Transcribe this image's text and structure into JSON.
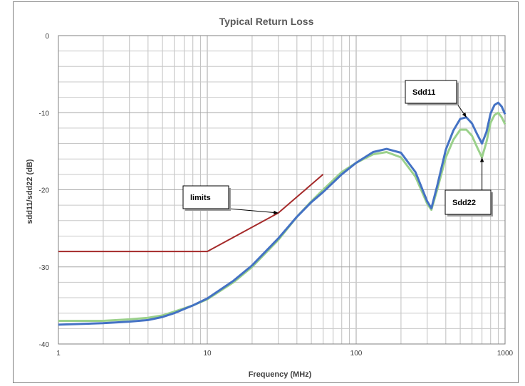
{
  "chart_data": {
    "type": "line",
    "title": "Typical Return Loss",
    "xlabel": "Frequency (MHz)",
    "ylabel": "sdd11/sdd22 (dB)",
    "xscale": "log",
    "xlim": [
      1,
      1000
    ],
    "ylim": [
      -40,
      0
    ],
    "x_ticks": [
      1,
      10,
      100,
      1000
    ],
    "x_tick_labels": [
      "1",
      "10",
      "100",
      "1000"
    ],
    "y_ticks": [
      0,
      -10,
      -20,
      -30,
      -40
    ],
    "y_tick_labels": [
      "0",
      "-10",
      "-20",
      "-30",
      "-40"
    ],
    "grid": true,
    "series": [
      {
        "name": "limits",
        "color": "#a52a2a",
        "x": [
          1,
          10,
          30,
          60
        ],
        "y": [
          -28,
          -28,
          -23,
          -18
        ]
      },
      {
        "name": "Sdd22",
        "color": "#9bd18b",
        "x": [
          1,
          2,
          3,
          4,
          5,
          6,
          8,
          10,
          15,
          20,
          30,
          40,
          50,
          60,
          80,
          100,
          130,
          160,
          200,
          250,
          300,
          320,
          350,
          400,
          450,
          500,
          550,
          600,
          650,
          700,
          750,
          800,
          850,
          900,
          950,
          1000
        ],
        "y": [
          -37,
          -37,
          -36.8,
          -36.6,
          -36.3,
          -35.8,
          -35,
          -34.2,
          -32,
          -30,
          -26.5,
          -23.5,
          -21.5,
          -20,
          -17.7,
          -16.5,
          -15.4,
          -15.1,
          -15.8,
          -18.3,
          -21.8,
          -22.6,
          -20,
          -15.8,
          -13.5,
          -12.2,
          -12.2,
          -13,
          -14.5,
          -15.8,
          -13.8,
          -11.3,
          -10.3,
          -10,
          -10.6,
          -11.5
        ]
      },
      {
        "name": "Sdd11",
        "color": "#4472c4",
        "x": [
          1,
          2,
          3,
          4,
          5,
          6,
          8,
          10,
          15,
          20,
          30,
          40,
          50,
          60,
          80,
          100,
          130,
          160,
          200,
          250,
          300,
          320,
          350,
          400,
          450,
          500,
          550,
          600,
          650,
          700,
          750,
          800,
          850,
          900,
          950,
          1000
        ],
        "y": [
          -37.5,
          -37.3,
          -37.1,
          -36.9,
          -36.5,
          -36,
          -35,
          -34.1,
          -31.8,
          -29.8,
          -26.3,
          -23.5,
          -21.6,
          -20.3,
          -18,
          -16.5,
          -15.1,
          -14.7,
          -15.2,
          -17.7,
          -21.5,
          -22.4,
          -19.5,
          -14.8,
          -12.3,
          -10.8,
          -10.6,
          -11.4,
          -12.8,
          -14,
          -12.5,
          -10.1,
          -9,
          -8.7,
          -9.2,
          -10.2
        ]
      }
    ],
    "annotations": [
      {
        "text": "limits",
        "target_x": 30,
        "target_y": -23
      },
      {
        "text": "Sdd11",
        "target_x": 550,
        "target_y": -10.6
      },
      {
        "text": "Sdd22",
        "target_x": 700,
        "target_y": -15.8
      }
    ]
  }
}
